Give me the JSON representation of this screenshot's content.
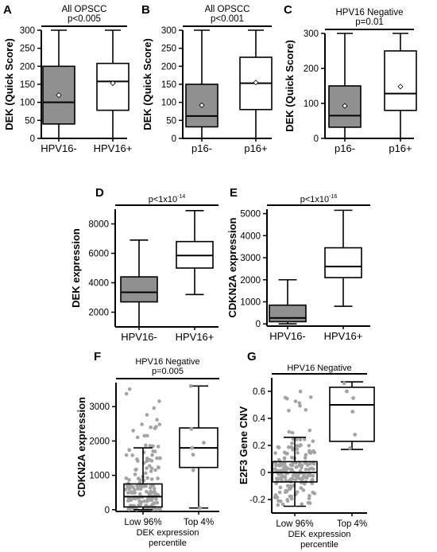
{
  "colors": {
    "gray_box": "#909090",
    "white_box": "#ffffff",
    "jitter": "#a3a3a3",
    "ink": "#000000"
  },
  "panels": [
    {
      "id": "A",
      "letter": "A",
      "title": "All OPSCC",
      "pval": "p<0.005",
      "ylabel": "DEK (Quick Score)",
      "ylim": [
        0,
        300
      ],
      "ticks": [
        0,
        50,
        100,
        150,
        200,
        250,
        300
      ]
    },
    {
      "id": "B",
      "letter": "B",
      "title": "All OPSCC",
      "pval": "p<0.001",
      "ylabel": "DEK (Quick Score)",
      "ylim": [
        0,
        300
      ],
      "ticks": [
        0,
        50,
        100,
        150,
        200,
        250,
        300
      ]
    },
    {
      "id": "C",
      "letter": "C",
      "title": "HPV16 Negative",
      "pval": "p=0.01",
      "ylabel": "DEK (Quick Score)",
      "ylim": [
        0,
        300
      ],
      "ticks": [
        0,
        100,
        200,
        300
      ]
    },
    {
      "id": "D",
      "letter": "D",
      "title": "",
      "pval_base": "p<1x10",
      "pval_exp": "-14",
      "ylabel": "DEK expression",
      "ylim": [
        1000,
        9000
      ],
      "ticks": [
        2000,
        4000,
        6000,
        8000
      ]
    },
    {
      "id": "E",
      "letter": "E",
      "title": "",
      "pval_base": "p<1x10",
      "pval_exp": "-16",
      "ylabel": "CDKN2A expression",
      "ylim": [
        -100,
        5200
      ],
      "ticks": [
        0,
        1000,
        2000,
        3000,
        4000,
        5000
      ]
    },
    {
      "id": "F",
      "letter": "F",
      "title": "HPV16 Negative",
      "pval": "p=0.005",
      "ylabel": "CDKN2A expression",
      "xtitle_line1": "DEK expression",
      "xtitle_line2": "percentile",
      "ylim": [
        -50,
        3700
      ],
      "ticks": [
        0,
        1000,
        2000,
        3000
      ]
    },
    {
      "id": "G",
      "letter": "G",
      "title": "HPV16 Negative",
      "pval": "",
      "ylabel": "E2F3 Gene CNV",
      "xtitle_line1": "DEK expression",
      "xtitle_line2": "percentile",
      "ylim": [
        -0.3,
        0.7
      ],
      "ticks": [
        -0.2,
        0,
        0.2,
        0.4,
        0.6
      ]
    }
  ],
  "chart_data": [
    {
      "type": "box",
      "panel": "A",
      "title": "All OPSCC",
      "annotation": "p<0.005",
      "ylabel": "DEK (Quick Score)",
      "ylim": [
        0,
        300
      ],
      "categories": [
        "HPV16-",
        "HPV16+"
      ],
      "boxes": [
        {
          "category": "HPV16-",
          "min": 0,
          "q1": 40,
          "median": 100,
          "q3": 200,
          "max": 300,
          "mean": 120,
          "fill": "gray"
        },
        {
          "category": "HPV16+",
          "min": 0,
          "q1": 78,
          "median": 158,
          "q3": 208,
          "max": 300,
          "mean": 153,
          "fill": "white"
        }
      ]
    },
    {
      "type": "box",
      "panel": "B",
      "title": "All OPSCC",
      "annotation": "p<0.001",
      "ylabel": "DEK (Quick Score)",
      "ylim": [
        0,
        300
      ],
      "categories": [
        "p16-",
        "p16+"
      ],
      "boxes": [
        {
          "category": "p16-",
          "min": 0,
          "q1": 32,
          "median": 62,
          "q3": 150,
          "max": 300,
          "mean": 92,
          "fill": "gray"
        },
        {
          "category": "p16+",
          "min": 0,
          "q1": 80,
          "median": 153,
          "q3": 225,
          "max": 300,
          "mean": 155,
          "fill": "white"
        }
      ]
    },
    {
      "type": "box",
      "panel": "C",
      "title": "HPV16 Negative",
      "annotation": "p=0.01",
      "ylabel": "DEK (Quick Score)",
      "ylim": [
        0,
        300
      ],
      "categories": [
        "p16-",
        "p16+"
      ],
      "boxes": [
        {
          "category": "p16-",
          "min": 0,
          "q1": 32,
          "median": 65,
          "q3": 150,
          "max": 300,
          "mean": 93,
          "fill": "gray"
        },
        {
          "category": "p16+",
          "min": 0,
          "q1": 80,
          "median": 128,
          "q3": 250,
          "max": 300,
          "mean": 148,
          "fill": "white"
        }
      ]
    },
    {
      "type": "box",
      "panel": "D",
      "annotation": "p<1x10-14",
      "ylabel": "DEK expression",
      "ylim": [
        1000,
        9000
      ],
      "categories": [
        "HPV16-",
        "HPV16+"
      ],
      "boxes": [
        {
          "category": "HPV16-",
          "min": 1000,
          "q1": 2700,
          "median": 3350,
          "q3": 4400,
          "max": 6900,
          "fill": "gray"
        },
        {
          "category": "HPV16+",
          "min": 3200,
          "q1": 5000,
          "median": 5850,
          "q3": 6800,
          "max": 8900,
          "fill": "white"
        }
      ]
    },
    {
      "type": "box",
      "panel": "E",
      "annotation": "p<1x10-16",
      "ylabel": "CDKN2A expression",
      "ylim": [
        -100,
        5200
      ],
      "categories": [
        "HPV16-",
        "HPV16+"
      ],
      "boxes": [
        {
          "category": "HPV16-",
          "min": 0,
          "q1": 100,
          "median": 270,
          "q3": 850,
          "max": 2000,
          "fill": "gray"
        },
        {
          "category": "HPV16+",
          "min": 800,
          "q1": 2100,
          "median": 2600,
          "q3": 3450,
          "max": 5150,
          "fill": "white"
        }
      ]
    },
    {
      "type": "box",
      "panel": "F",
      "title": "HPV16 Negative",
      "annotation": "p=0.005",
      "ylabel": "CDKN2A expression",
      "xlabel": "DEK expression percentile",
      "ylim": [
        -50,
        3700
      ],
      "categories": [
        "Low 96%",
        "Top 4%"
      ],
      "boxes": [
        {
          "category": "Low 96%",
          "min": 0,
          "q1": 80,
          "median": 380,
          "q3": 750,
          "max": 1800,
          "fill": "white"
        },
        {
          "category": "Top 4%",
          "min": 50,
          "q1": 1230,
          "median": 1800,
          "q3": 2380,
          "max": 3600,
          "fill": "white"
        }
      ],
      "points": [
        {
          "category": "Top 4%",
          "values": [
            3600,
            2350,
            1950,
            1800,
            1600,
            1150,
            50
          ]
        }
      ]
    },
    {
      "type": "box",
      "panel": "G",
      "title": "HPV16 Negative",
      "ylabel": "E2F3 Gene CNV",
      "xlabel": "DEK expression percentile",
      "ylim": [
        -0.3,
        0.7
      ],
      "categories": [
        "Low 96%",
        "Top 4%"
      ],
      "boxes": [
        {
          "category": "Low 96%",
          "min": -0.25,
          "q1": -0.07,
          "median": 0.0,
          "q3": 0.08,
          "max": 0.26,
          "fill": "white"
        },
        {
          "category": "Top 4%",
          "min": 0.17,
          "q1": 0.23,
          "median": 0.5,
          "q3": 0.63,
          "max": 0.67,
          "fill": "white"
        }
      ],
      "points": [
        {
          "category": "Top 4%",
          "values": [
            0.66,
            0.6,
            0.55,
            0.45,
            0.28,
            0.18
          ]
        }
      ]
    }
  ]
}
